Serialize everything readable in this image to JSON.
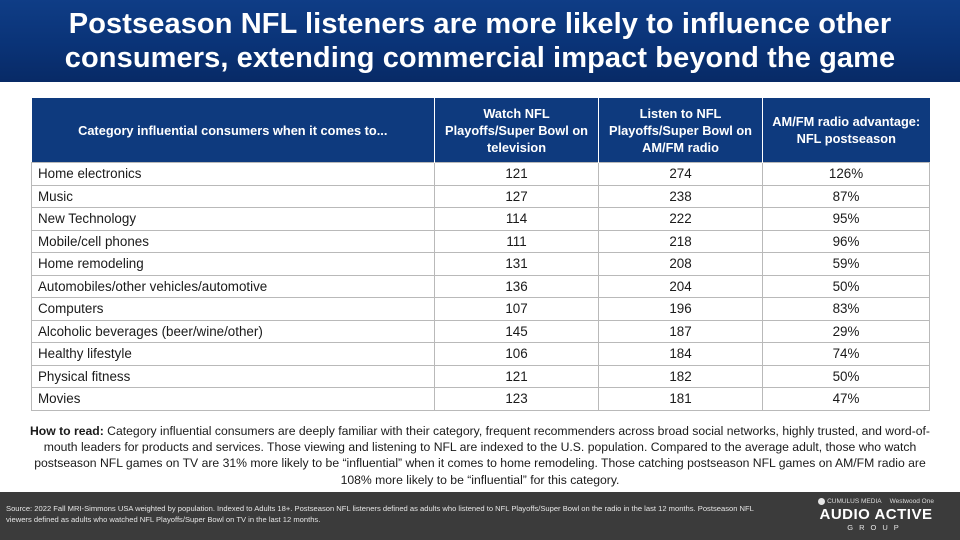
{
  "title": {
    "line1": "Postseason NFL listeners are more likely to influence other",
    "line2": "consumers, extending commercial impact beyond the game"
  },
  "table": {
    "headers": [
      "Category influential consumers when it comes to...",
      "Watch NFL Playoffs/Super Bowl on television",
      "Listen to NFL Playoffs/Super Bowl on AM/FM radio",
      "AM/FM radio advantage: NFL postseason"
    ],
    "rows": [
      [
        "Home electronics",
        "121",
        "274",
        "126%"
      ],
      [
        "Music",
        "127",
        "238",
        "87%"
      ],
      [
        "New Technology",
        "114",
        "222",
        "95%"
      ],
      [
        "Mobile/cell phones",
        "111",
        "218",
        "96%"
      ],
      [
        "Home remodeling",
        "131",
        "208",
        "59%"
      ],
      [
        "Automobiles/other vehicles/automotive",
        "136",
        "204",
        "50%"
      ],
      [
        "Computers",
        "107",
        "196",
        "83%"
      ],
      [
        "Alcoholic beverages (beer/wine/other)",
        "145",
        "187",
        "29%"
      ],
      [
        "Healthy lifestyle",
        "106",
        "184",
        "74%"
      ],
      [
        "Physical fitness",
        "121",
        "182",
        "50%"
      ],
      [
        "Movies",
        "123",
        "181",
        "47%"
      ]
    ]
  },
  "how_to_read": {
    "label": "How to read:",
    "text": " Category influential consumers are deeply familiar with their category, frequent recommenders across broad social networks, highly trusted, and word-of-mouth leaders for products and services. Those viewing and listening to NFL are indexed to the U.S. population. Compared to the average adult, those who watch postseason NFL games on TV are 31% more likely to be “influential” when it comes to home remodeling. Those catching postseason NFL games on AM/FM radio are 108% more likely to be “influential” for this category."
  },
  "footer": {
    "source": "Source: 2022 Fall MRI-Simmons USA weighted by population. Indexed to Adults 18+. Postseason NFL listeners defined as adults who listened to NFL Playoffs/Super Bowl on the radio in the last 12 months. Postseason NFL viewers defined as adults who watched NFL Playoffs/Super Bowl on TV in the last 12 months.",
    "brand_top_left": "CUMULUS MEDIA",
    "brand_top_right": "Westwood One",
    "brand_main": "AUDIO ACTIVE",
    "brand_sub": "GROUP"
  }
}
